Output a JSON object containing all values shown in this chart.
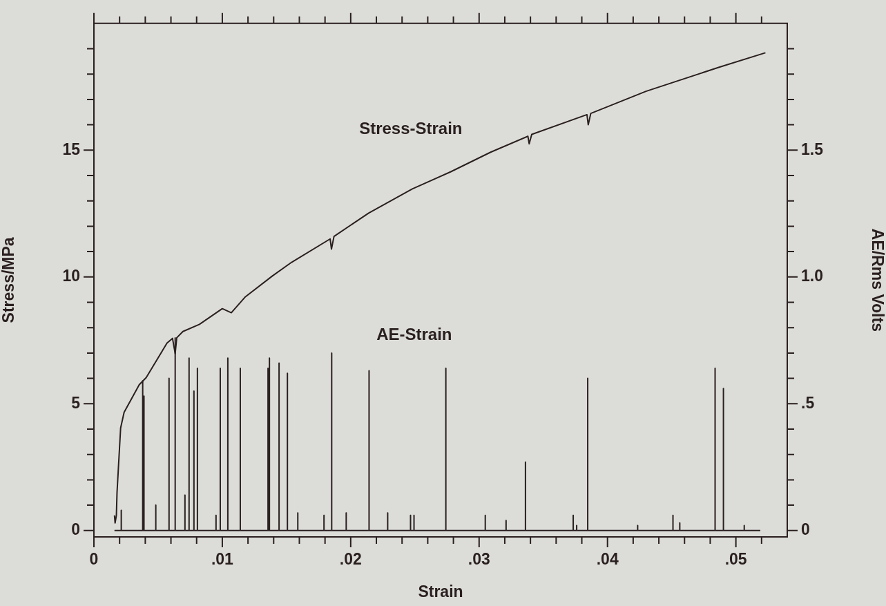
{
  "chart_data": {
    "type": "line",
    "xlabel": "Strain",
    "ylabel": "Stress/MPa",
    "y2label": "AE/Rms Volts",
    "xlim": [
      0,
      0.054
    ],
    "xticks": [
      0,
      {
        "value": 0.002,
        "label": null
      },
      {
        "value": 0.004,
        "label": null
      },
      {
        "value": 0.006,
        "label": null
      },
      {
        "value": 0.008,
        "label": null
      },
      {
        "value": 0.01,
        "label": ".01"
      },
      {
        "value": 0.012,
        "label": null
      },
      {
        "value": 0.014,
        "label": null
      },
      {
        "value": 0.016,
        "label": null
      },
      {
        "value": 0.018,
        "label": null
      },
      {
        "value": 0.02,
        "label": ".02"
      },
      {
        "value": 0.022,
        "label": null
      },
      {
        "value": 0.024,
        "label": null
      },
      {
        "value": 0.026,
        "label": null
      },
      {
        "value": 0.028,
        "label": null
      },
      {
        "value": 0.03,
        "label": ".03"
      },
      {
        "value": 0.032,
        "label": null
      },
      {
        "value": 0.034,
        "label": null
      },
      {
        "value": 0.036,
        "label": null
      },
      {
        "value": 0.038,
        "label": null
      },
      {
        "value": 0.04,
        "label": ".04"
      },
      {
        "value": 0.042,
        "label": null
      },
      {
        "value": 0.044,
        "label": null
      },
      {
        "value": 0.046,
        "label": null
      },
      {
        "value": 0.048,
        "label": null
      },
      {
        "value": 0.05,
        "label": ".05"
      },
      {
        "value": 0.052,
        "label": null
      }
    ],
    "ylim": [
      -0.25,
      20
    ],
    "yticks": [
      0,
      {
        "value": 1,
        "label": null
      },
      {
        "value": 2,
        "label": null
      },
      {
        "value": 3,
        "label": null
      },
      {
        "value": 4,
        "label": null
      },
      5,
      {
        "value": 6,
        "label": null
      },
      {
        "value": 7,
        "label": null
      },
      {
        "value": 8,
        "label": null
      },
      {
        "value": 9,
        "label": null
      },
      10,
      {
        "value": 11,
        "label": null
      },
      {
        "value": 12,
        "label": null
      },
      {
        "value": 13,
        "label": null
      },
      {
        "value": 14,
        "label": null
      },
      15,
      {
        "value": 16,
        "label": null
      },
      {
        "value": 17,
        "label": null
      },
      {
        "value": 18,
        "label": null
      },
      {
        "value": 19,
        "label": null
      }
    ],
    "y2lim": [
      -0.025,
      2.0
    ],
    "y2ticks": [
      0,
      {
        "value": 0.1,
        "label": null
      },
      {
        "value": 0.2,
        "label": null
      },
      {
        "value": 0.3,
        "label": null
      },
      {
        "value": 0.4,
        "label": null
      },
      {
        "value": 0.5,
        "label": ".5"
      },
      {
        "value": 0.6,
        "label": null
      },
      {
        "value": 0.7,
        "label": null
      },
      {
        "value": 0.8,
        "label": null
      },
      {
        "value": 0.9,
        "label": null
      },
      {
        "value": 1.0,
        "label": "1.0"
      },
      {
        "value": 1.1,
        "label": null
      },
      {
        "value": 1.2,
        "label": null
      },
      {
        "value": 1.3,
        "label": null
      },
      {
        "value": 1.4,
        "label": null
      },
      {
        "value": 1.5,
        "label": "1.5"
      },
      {
        "value": 1.6,
        "label": null
      },
      {
        "value": 1.7,
        "label": null
      },
      {
        "value": 1.8,
        "label": null
      },
      {
        "value": 1.9,
        "label": null
      }
    ],
    "series": [
      {
        "name": "Stress-Strain",
        "type": "line",
        "color": "#2a1f20",
        "x": [
          0.0016,
          0.00165,
          0.00175,
          0.0018,
          0.00208,
          0.00235,
          0.00353,
          0.00407,
          0.00569,
          0.00612,
          0.00633,
          0.00645,
          0.00693,
          0.00822,
          0.01,
          0.0107,
          0.0118,
          0.0139,
          0.0154,
          0.0184,
          0.0185,
          0.0187,
          0.0214,
          0.0248,
          0.0278,
          0.0309,
          0.0338,
          0.0339,
          0.0341,
          0.0384,
          0.0385,
          0.0387,
          0.043,
          0.0487,
          0.0523
        ],
        "values": [
          0.6,
          0.3,
          0.6,
          1.5,
          4.04,
          4.66,
          5.75,
          6.03,
          7.39,
          7.58,
          6.98,
          7.6,
          7.85,
          8.13,
          8.75,
          8.59,
          9.22,
          10.04,
          10.58,
          11.5,
          11.1,
          11.6,
          12.52,
          13.47,
          14.15,
          14.92,
          15.55,
          15.25,
          15.62,
          16.4,
          16.0,
          16.45,
          17.32,
          18.27,
          18.84
        ]
      },
      {
        "name": "AE-Strain",
        "type": "line",
        "axis": "y2",
        "color": "#2a1f20",
        "x": [
          0.0016,
          0.00213,
          0.00213,
          0.00213,
          0.0038,
          0.0038,
          0.0038,
          0.0039,
          0.0039,
          0.0039,
          0.00482,
          0.00482,
          0.00482,
          0.00585,
          0.00585,
          0.00585,
          0.00633,
          0.00633,
          0.00633,
          0.00709,
          0.00709,
          0.00709,
          0.00741,
          0.00741,
          0.00741,
          0.00779,
          0.00779,
          0.00779,
          0.00806,
          0.00806,
          0.00806,
          0.00951,
          0.00951,
          0.00951,
          0.00984,
          0.00984,
          0.00984,
          0.01043,
          0.01043,
          0.01043,
          0.0114,
          0.0114,
          0.0114,
          0.01356,
          0.01356,
          0.01356,
          0.01367,
          0.01367,
          0.01367,
          0.01442,
          0.01442,
          0.01442,
          0.01507,
          0.01507,
          0.01507,
          0.01588,
          0.01588,
          0.01588,
          0.01792,
          0.01792,
          0.01792,
          0.01852,
          0.01852,
          0.01852,
          0.01965,
          0.01965,
          0.01965,
          0.02143,
          0.02143,
          0.02143,
          0.02288,
          0.02288,
          0.02288,
          0.02466,
          0.02466,
          0.02466,
          0.02493,
          0.02493,
          0.02493,
          0.02741,
          0.02741,
          0.02741,
          0.03048,
          0.03048,
          0.03048,
          0.0321,
          0.0321,
          0.0321,
          0.03361,
          0.03361,
          0.03361,
          0.03733,
          0.03733,
          0.03733,
          0.0376,
          0.0376,
          0.0376,
          0.03846,
          0.03846,
          0.03846,
          0.04235,
          0.04235,
          0.04235,
          0.0451,
          0.0451,
          0.0451,
          0.04563,
          0.04563,
          0.04563,
          0.04838,
          0.04838,
          0.04838,
          0.04903,
          0.04903,
          0.04903,
          0.05065,
          0.05065,
          0.05065,
          0.0519
        ],
        "values": [
          0,
          0,
          0.08,
          0,
          0,
          0.59,
          0,
          0,
          0.53,
          0,
          0,
          0.1,
          0,
          0,
          0.6,
          0,
          0,
          0.76,
          0,
          0,
          0.14,
          0,
          0,
          0.68,
          0,
          0,
          0.55,
          0,
          0,
          0.64,
          0,
          0,
          0.06,
          0,
          0,
          0.64,
          0,
          0,
          0.68,
          0,
          0,
          0.64,
          0,
          0,
          0.64,
          0,
          0,
          0.68,
          0,
          0,
          0.66,
          0,
          0,
          0.62,
          0,
          0,
          0.07,
          0,
          0,
          0.06,
          0,
          0,
          0.7,
          0,
          0,
          0.07,
          0,
          0,
          0.63,
          0,
          0,
          0.07,
          0,
          0,
          0.06,
          0,
          0,
          0.06,
          0,
          0,
          0.64,
          0,
          0,
          0.06,
          0,
          0,
          0.04,
          0,
          0,
          0.27,
          0,
          0,
          0.06,
          0,
          0,
          0.02,
          0,
          0,
          0.6,
          0,
          0,
          0.02,
          0,
          0,
          0.06,
          0,
          0,
          0.03,
          0,
          0,
          0.64,
          0,
          0,
          0.56,
          0,
          0,
          0.02,
          0,
          0
        ]
      }
    ]
  }
}
